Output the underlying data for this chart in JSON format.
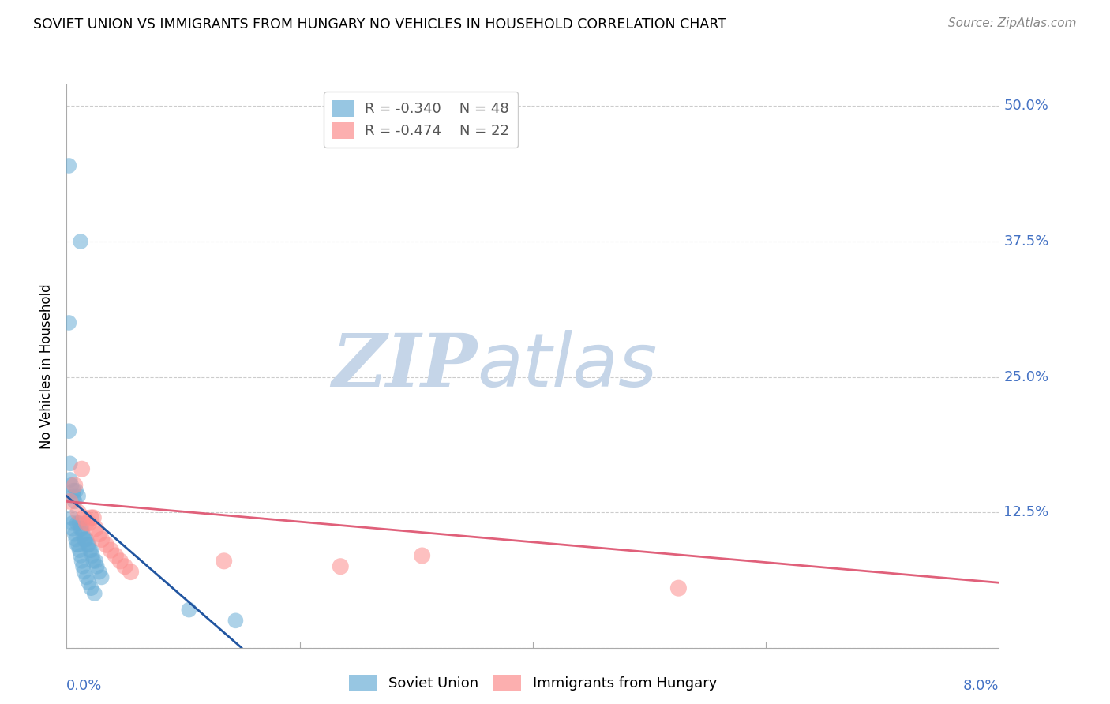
{
  "title": "SOVIET UNION VS IMMIGRANTS FROM HUNGARY NO VEHICLES IN HOUSEHOLD CORRELATION CHART",
  "source": "Source: ZipAtlas.com",
  "ylabel": "No Vehicles in Household",
  "xlim": [
    0.0,
    8.0
  ],
  "ylim": [
    0.0,
    52.0
  ],
  "yticks": [
    0.0,
    12.5,
    25.0,
    37.5,
    50.0
  ],
  "right_ytick_labels": [
    "",
    "12.5%",
    "25.0%",
    "37.5%",
    "50.0%"
  ],
  "legend_r1": "R = -0.340",
  "legend_n1": "N = 48",
  "legend_r2": "R = -0.474",
  "legend_n2": "N = 22",
  "soviet_color": "#6baed6",
  "hungary_color": "#fc8d8d",
  "soviet_line_color": "#2155a0",
  "hungary_line_color": "#e0607a",
  "watermark_zip_color": "#c5d5e8",
  "watermark_atlas_color": "#c5d5e8",
  "soviet_x": [
    0.02,
    0.12,
    0.02,
    0.02,
    0.03,
    0.03,
    0.04,
    0.06,
    0.06,
    0.07,
    0.08,
    0.09,
    0.1,
    0.11,
    0.12,
    0.13,
    0.14,
    0.15,
    0.16,
    0.17,
    0.18,
    0.19,
    0.2,
    0.21,
    0.22,
    0.23,
    0.25,
    0.26,
    0.28,
    0.3,
    0.04,
    0.05,
    0.05,
    0.07,
    0.08,
    0.09,
    0.1,
    0.11,
    0.12,
    0.13,
    0.14,
    0.15,
    0.17,
    0.19,
    0.21,
    0.24,
    1.05,
    1.45
  ],
  "soviet_y": [
    44.5,
    37.5,
    30.0,
    20.0,
    17.0,
    15.5,
    15.0,
    14.5,
    14.0,
    13.5,
    14.5,
    11.5,
    14.0,
    11.5,
    11.0,
    11.0,
    10.5,
    10.0,
    10.0,
    10.0,
    9.5,
    9.5,
    9.0,
    9.0,
    8.5,
    8.0,
    8.0,
    7.5,
    7.0,
    6.5,
    12.0,
    11.5,
    11.0,
    10.5,
    10.0,
    9.5,
    9.5,
    9.0,
    8.5,
    8.0,
    7.5,
    7.0,
    6.5,
    6.0,
    5.5,
    5.0,
    3.5,
    2.5
  ],
  "hungary_x": [
    0.03,
    0.07,
    0.1,
    0.13,
    0.15,
    0.17,
    0.19,
    0.21,
    0.23,
    0.25,
    0.28,
    0.3,
    0.34,
    0.38,
    0.42,
    0.46,
    0.5,
    0.55,
    1.35,
    2.35,
    3.05,
    5.25
  ],
  "hungary_y": [
    13.5,
    15.0,
    12.5,
    16.5,
    12.0,
    11.5,
    11.5,
    12.0,
    12.0,
    11.0,
    10.5,
    10.0,
    9.5,
    9.0,
    8.5,
    8.0,
    7.5,
    7.0,
    8.0,
    7.5,
    8.5,
    5.5
  ],
  "soviet_trendline": [
    [
      0.0,
      1.5
    ],
    [
      14.0,
      0.0
    ]
  ],
  "hungary_trendline": [
    [
      0.0,
      8.0
    ],
    [
      13.5,
      6.0
    ]
  ],
  "background_color": "#ffffff",
  "grid_color": "#cccccc",
  "tick_color": "#4472c4",
  "bottom_legend_labels": [
    "Soviet Union",
    "Immigrants from Hungary"
  ]
}
